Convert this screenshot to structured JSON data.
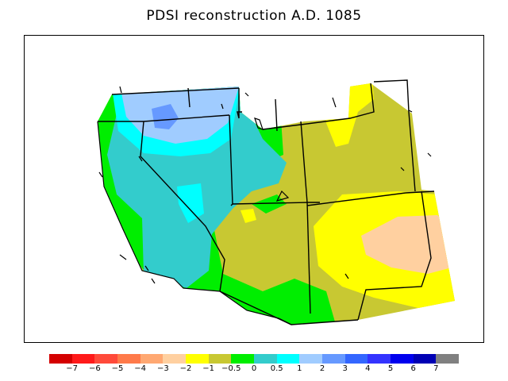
{
  "title": "PDSI reconstruction A.D. 1085",
  "legend": {
    "colors": [
      "#d40000",
      "#ff1a1a",
      "#ff4a3a",
      "#ff7a4a",
      "#ffa872",
      "#ffd0a0",
      "#ffff00",
      "#c8c832",
      "#00ee00",
      "#33cccc",
      "#00ffff",
      "#a0ccff",
      "#6699ff",
      "#3366ff",
      "#3333ff",
      "#0000ee",
      "#0000b4",
      "#808080"
    ],
    "labels": [
      "−7",
      "−6",
      "−5",
      "−4",
      "−3",
      "−2",
      "−1",
      "−0.5",
      "0",
      "0.5",
      "1",
      "2",
      "3",
      "4",
      "5",
      "6",
      "7"
    ]
  }
}
